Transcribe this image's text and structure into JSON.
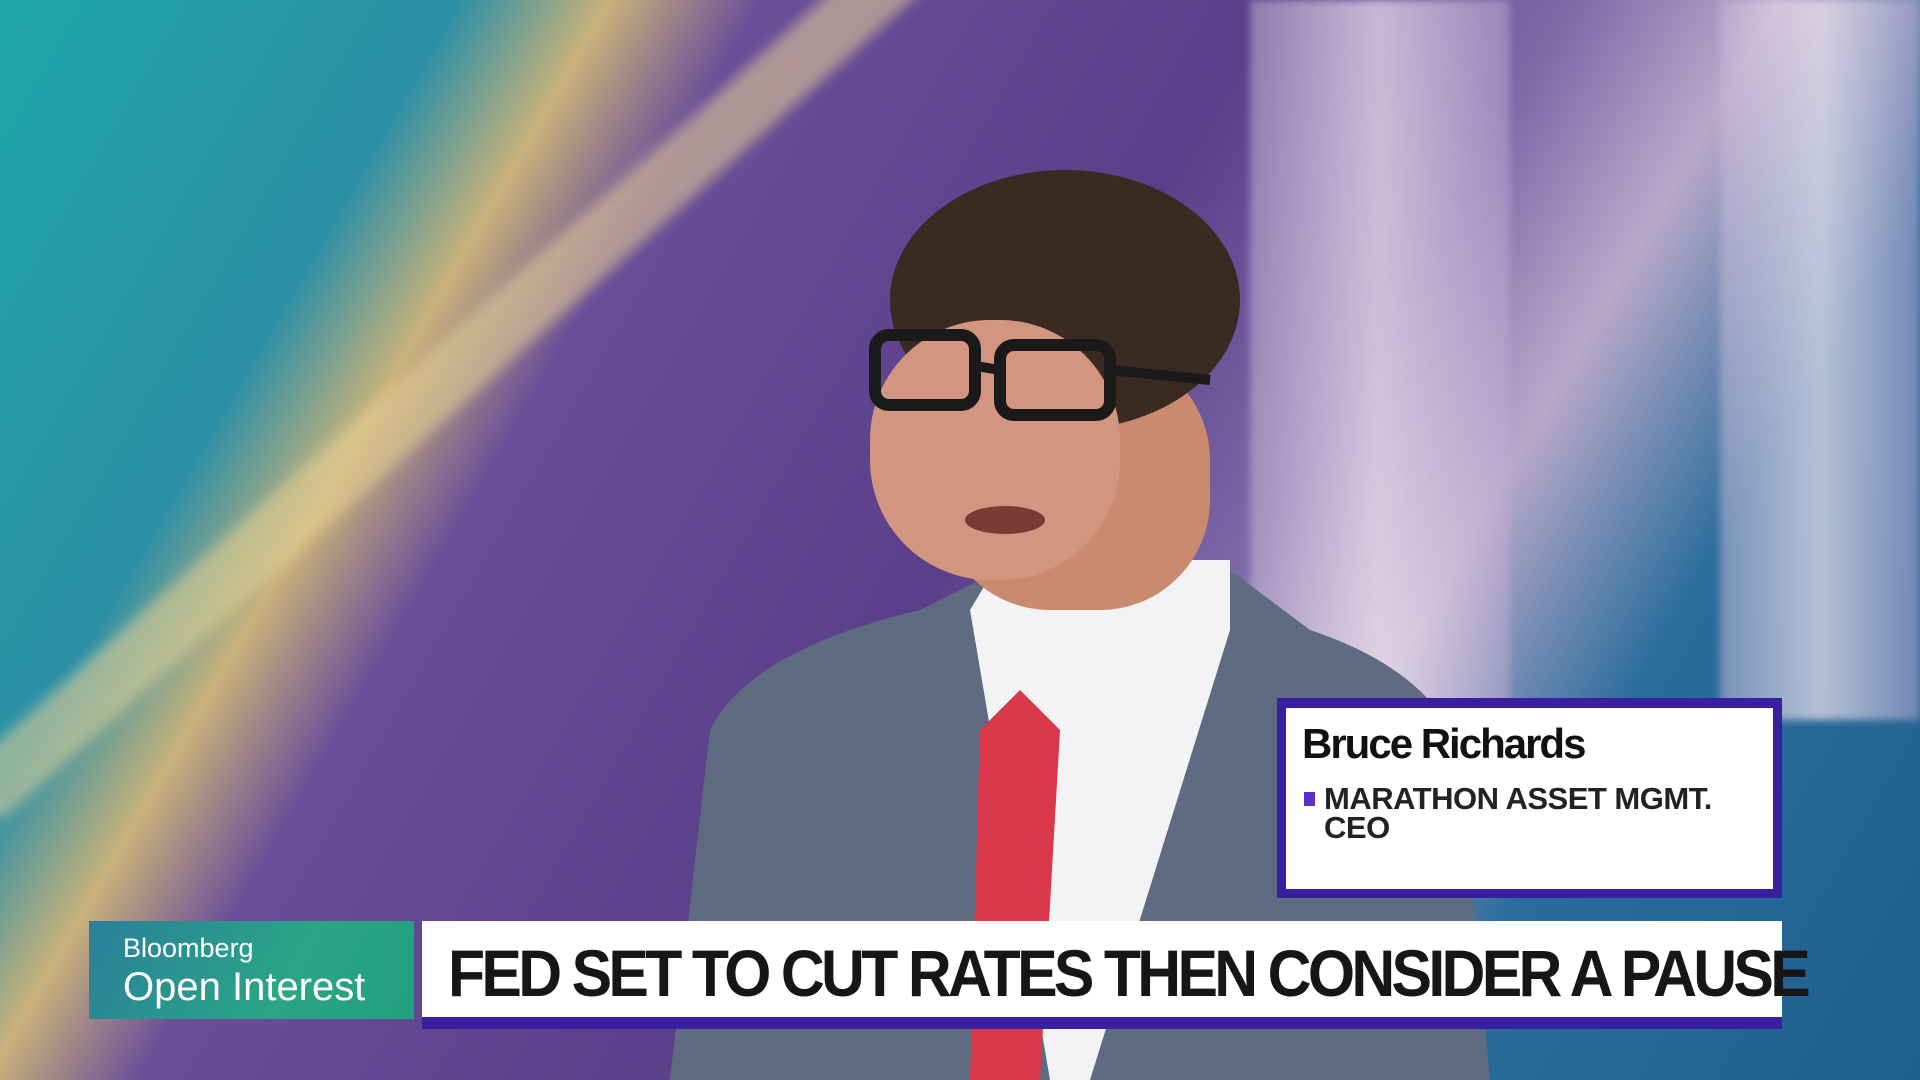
{
  "broadcast": {
    "show": {
      "brand": "Bloomberg",
      "program": "Open Interest"
    },
    "guest": {
      "name": "Bruce Richards",
      "affiliation": "MARATHON ASSET MGMT.",
      "role": "CEO"
    },
    "headline": "FED SET TO CUT RATES THEN CONSIDER A PAUSE",
    "colors": {
      "accent": "#3a1fa0",
      "logo_bg": "#2aa586",
      "bullet": "#5a2fd0"
    }
  }
}
